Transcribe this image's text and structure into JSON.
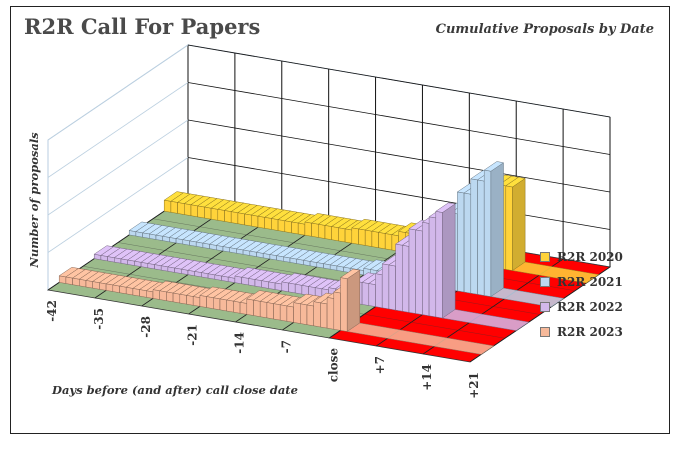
{
  "chart_data": {
    "type": "bar",
    "title": "R2R Call For Papers",
    "subtitle": "Cumulative Proposals by Date",
    "xlabel": "Days before (and after) call close date",
    "ylabel": "Number of proposals",
    "x_ticks": [
      "-42",
      "-35",
      "-28",
      "-21",
      "-14",
      "-7",
      "close",
      "+7",
      "+14",
      "+21"
    ],
    "x_range": [
      -42,
      21
    ],
    "closed_period_color": "#ff0000",
    "open_period_color": "#9bbb8b",
    "legend_position": "right",
    "series": [
      {
        "name": "R2R 2020",
        "color": "#ffd33a",
        "points": [
          [
            -42,
            5
          ],
          [
            -35,
            5
          ],
          [
            -28,
            5
          ],
          [
            -21,
            6
          ],
          [
            -14,
            7
          ],
          [
            -7,
            9
          ],
          [
            -5,
            10
          ],
          [
            -3,
            12
          ],
          [
            -1,
            14
          ],
          [
            0,
            15
          ],
          [
            1,
            22
          ],
          [
            3,
            30
          ],
          [
            5,
            35
          ],
          [
            7,
            38
          ],
          [
            9,
            38
          ]
        ]
      },
      {
        "name": "R2R 2021",
        "color": "#bcd8f0",
        "points": [
          [
            -42,
            2
          ],
          [
            -35,
            2
          ],
          [
            -28,
            2
          ],
          [
            -21,
            2
          ],
          [
            -14,
            2
          ],
          [
            -7,
            3
          ],
          [
            -3,
            4
          ],
          [
            0,
            6
          ],
          [
            1,
            15
          ],
          [
            3,
            25
          ],
          [
            5,
            35
          ],
          [
            7,
            45
          ],
          [
            9,
            52
          ],
          [
            11,
            57
          ]
        ]
      },
      {
        "name": "R2R 2022",
        "color": "#d2b8ea",
        "points": [
          [
            -42,
            2
          ],
          [
            -35,
            2
          ],
          [
            -28,
            2
          ],
          [
            -21,
            3
          ],
          [
            -14,
            4
          ],
          [
            -7,
            5
          ],
          [
            -3,
            10
          ],
          [
            0,
            15
          ],
          [
            1,
            20
          ],
          [
            3,
            30
          ],
          [
            5,
            38
          ],
          [
            7,
            42
          ],
          [
            8,
            45
          ],
          [
            9,
            48
          ]
        ]
      },
      {
        "name": "R2R 2023",
        "color": "#f7b99a",
        "points": [
          [
            -42,
            3
          ],
          [
            -35,
            3
          ],
          [
            -28,
            4
          ],
          [
            -21,
            5
          ],
          [
            -14,
            7
          ],
          [
            -7,
            9
          ],
          [
            -4,
            11
          ],
          [
            -2,
            14
          ],
          [
            -1,
            17
          ],
          [
            0,
            24
          ]
        ]
      }
    ]
  }
}
